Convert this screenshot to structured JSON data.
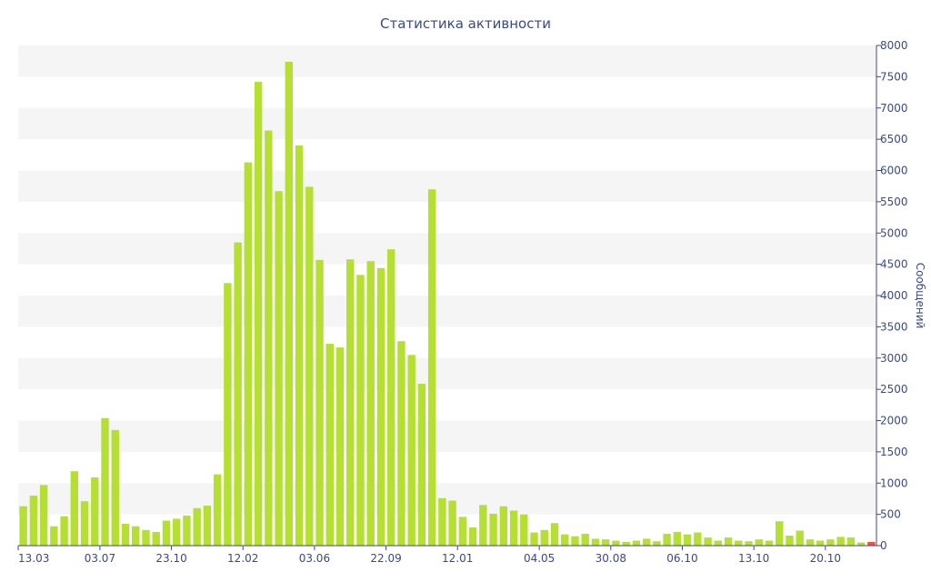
{
  "chart_data": {
    "type": "bar",
    "title": "Статистика активности",
    "xlabel": "",
    "ylabel": "Сообщений",
    "ylim": [
      0,
      8000
    ],
    "y_ticks": [
      0,
      500,
      1000,
      1500,
      2000,
      2500,
      3000,
      3500,
      4000,
      4500,
      5000,
      5500,
      6000,
      6500,
      7000,
      7500,
      8000
    ],
    "grid": "alternating horizontal bands",
    "y_axis_side": "right",
    "x_tick_labels": [
      {
        "label": "13.03",
        "index": 0
      },
      {
        "label": "03.07",
        "index": 8
      },
      {
        "label": "23.10",
        "index": 15
      },
      {
        "label": "12.02",
        "index": 22
      },
      {
        "label": "03.06",
        "index": 29
      },
      {
        "label": "22.09",
        "index": 36
      },
      {
        "label": "12.01",
        "index": 43
      },
      {
        "label": "04.05",
        "index": 51
      },
      {
        "label": "30.08",
        "index": 58
      },
      {
        "label": "06.10",
        "index": 65
      },
      {
        "label": "13.10",
        "index": 72
      },
      {
        "label": "20.10",
        "index": 79
      }
    ],
    "colors": {
      "bar": "#b5e033",
      "last_bar": "#e8553a",
      "band": "#f5f5f5",
      "text": "#3b4a84"
    },
    "values": [
      630,
      800,
      970,
      310,
      470,
      1190,
      710,
      1090,
      2040,
      1850,
      350,
      310,
      250,
      220,
      400,
      430,
      480,
      600,
      640,
      1140,
      4200,
      4850,
      6130,
      7420,
      6640,
      5670,
      7740,
      6400,
      5740,
      4570,
      3230,
      3170,
      4580,
      4330,
      4550,
      4440,
      4740,
      3270,
      3050,
      2590,
      5700,
      760,
      720,
      460,
      290,
      650,
      510,
      630,
      560,
      500,
      210,
      250,
      360,
      180,
      150,
      190,
      110,
      100,
      80,
      60,
      80,
      110,
      70,
      190,
      220,
      180,
      210,
      130,
      80,
      130,
      80,
      70,
      100,
      80,
      390,
      160,
      240,
      100,
      80,
      100,
      140,
      130,
      50,
      60
    ]
  }
}
